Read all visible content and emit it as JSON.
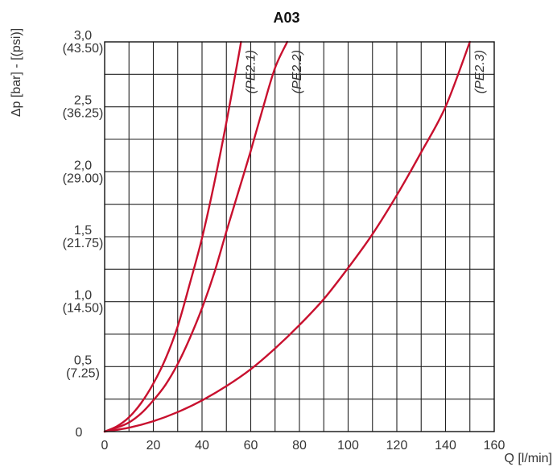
{
  "chart_data": {
    "type": "line",
    "title": "A03",
    "xlabel": "Q [l/min]",
    "ylabel": "Δp [bar] - [(psi)]",
    "xlim": [
      0,
      160
    ],
    "ylim": [
      0,
      3.0
    ],
    "x_ticks": [
      {
        "value": 0,
        "label": "0"
      },
      {
        "value": 20,
        "label": "20"
      },
      {
        "value": 40,
        "label": "40"
      },
      {
        "value": 60,
        "label": "60"
      },
      {
        "value": 80,
        "label": "80"
      },
      {
        "value": 100,
        "label": "100"
      },
      {
        "value": 120,
        "label": "120"
      },
      {
        "value": 140,
        "label": "140"
      },
      {
        "value": 160,
        "label": "160"
      }
    ],
    "y_ticks": [
      {
        "value": 0,
        "label": "0",
        "sublabel": ""
      },
      {
        "value": 0.5,
        "label": "0,5",
        "sublabel": "(7.25)"
      },
      {
        "value": 1.0,
        "label": "1,0",
        "sublabel": "(14.50)"
      },
      {
        "value": 1.5,
        "label": "1,5",
        "sublabel": "(21.75)"
      },
      {
        "value": 2.0,
        "label": "2,0",
        "sublabel": "(29.00)"
      },
      {
        "value": 2.5,
        "label": "2,5",
        "sublabel": "(36.25)"
      },
      {
        "value": 3.0,
        "label": "3,0",
        "sublabel": "(43.50)"
      }
    ],
    "grid_x_step": 10,
    "grid_y_step": 0.25,
    "grid": true,
    "line_color": "#c8102e",
    "series": [
      {
        "name": "(PE2.1)",
        "x": [
          0,
          5,
          10,
          15,
          20,
          25,
          30,
          35,
          40,
          45,
          50,
          55,
          56
        ],
        "y": [
          0,
          0.04,
          0.11,
          0.22,
          0.37,
          0.56,
          0.81,
          1.14,
          1.49,
          1.91,
          2.38,
          2.89,
          3.0
        ]
      },
      {
        "name": "(PE2.2)",
        "x": [
          0,
          5,
          10,
          15,
          20,
          25,
          30,
          35,
          40,
          45,
          50,
          55,
          60,
          65,
          70,
          75
        ],
        "y": [
          0,
          0.03,
          0.07,
          0.14,
          0.24,
          0.36,
          0.52,
          0.72,
          0.95,
          1.22,
          1.54,
          1.85,
          2.16,
          2.49,
          2.8,
          3.0
        ]
      },
      {
        "name": "(PE2.3)",
        "x": [
          0,
          10,
          20,
          30,
          40,
          50,
          60,
          70,
          80,
          90,
          100,
          110,
          120,
          130,
          140,
          150
        ],
        "y": [
          0,
          0.03,
          0.08,
          0.15,
          0.24,
          0.35,
          0.48,
          0.64,
          0.82,
          1.02,
          1.26,
          1.52,
          1.82,
          2.15,
          2.5,
          3.0
        ]
      }
    ]
  }
}
